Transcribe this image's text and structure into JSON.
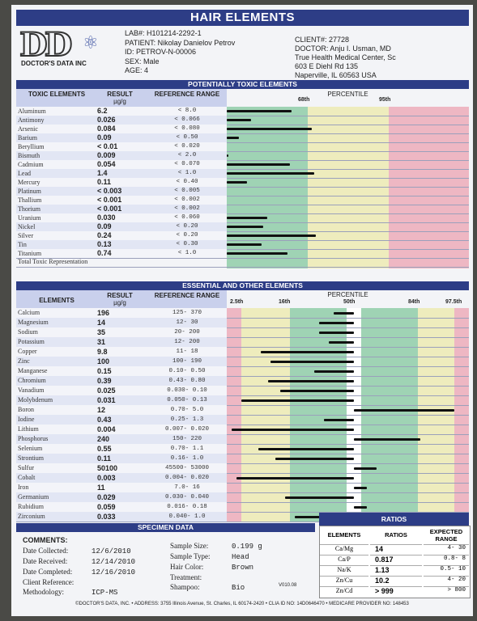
{
  "title": "HAIR ELEMENTS",
  "logo": {
    "mark": "DD",
    "brand": "DOCTOR'S DATA INC"
  },
  "patient": {
    "lab": "LAB#: H101214-2292-1",
    "name": "PATIENT: Nikolay Danielov Petrov",
    "id": "ID:      PETROV-N-00006",
    "sex": "SEX: Male",
    "age": "AGE: 4"
  },
  "client": {
    "client": "CLIENT#: 27728",
    "doctor": "DOCTOR: Anju I. Usman, MD",
    "center": "True Health Medical Center, Sc",
    "address": "603 E Diehl Rd 135",
    "city": "Naperville, IL 60563 USA"
  },
  "toxic": {
    "section_title": "POTENTIALLY TOXIC ELEMENTS",
    "headers": {
      "element": "TOXIC ELEMENTS",
      "result": "RESULT",
      "unit": "µg/g",
      "range": "REFERENCE RANGE",
      "percentile": "PERCENTILE",
      "p68": "68th",
      "p95": "95th"
    },
    "rows": [
      {
        "el": "Aluminum",
        "res": "6.2",
        "ref": "<   8.0",
        "bar": 0.8
      },
      {
        "el": "Antimony",
        "res": "0.026",
        "ref": "< 0.066",
        "bar": 0.3
      },
      {
        "el": "Arsenic",
        "res": "0.084",
        "ref": "< 0.080",
        "bar": 1.05
      },
      {
        "el": "Barium",
        "res": "0.09",
        "ref": "<  0.50",
        "bar": 0.15
      },
      {
        "el": "Beryllium",
        "res": "< 0.01",
        "ref": "< 0.020",
        "bar": 0.0
      },
      {
        "el": "Bismuth",
        "res": "0.009",
        "ref": "<   2.0",
        "bar": 0.02
      },
      {
        "el": "Cadmium",
        "res": "0.054",
        "ref": "< 0.070",
        "bar": 0.78
      },
      {
        "el": "Lead",
        "res": "1.4",
        "ref": "<   1.0",
        "bar": 1.08
      },
      {
        "el": "Mercury",
        "res": "0.11",
        "ref": "<  0.40",
        "bar": 0.25
      },
      {
        "el": "Platinum",
        "res": "< 0.003",
        "ref": "< 0.005",
        "bar": 0.0
      },
      {
        "el": "Thallium",
        "res": "< 0.001",
        "ref": "< 0.002",
        "bar": 0.0
      },
      {
        "el": "Thorium",
        "res": "< 0.001",
        "ref": "< 0.002",
        "bar": 0.0
      },
      {
        "el": "Uranium",
        "res": "0.030",
        "ref": "< 0.060",
        "bar": 0.5
      },
      {
        "el": "Nickel",
        "res": "0.09",
        "ref": "<  0.20",
        "bar": 0.45
      },
      {
        "el": "Silver",
        "res": "0.24",
        "ref": "<  0.20",
        "bar": 1.1
      },
      {
        "el": "Tin",
        "res": "0.13",
        "ref": "<  0.30",
        "bar": 0.43
      },
      {
        "el": "Titanium",
        "res": "0.74",
        "ref": "<   1.0",
        "bar": 0.75
      }
    ],
    "total": "Total Toxic Representation"
  },
  "essential": {
    "section_title": "ESSENTIAL AND OTHER ELEMENTS",
    "headers": {
      "element": "ELEMENTS",
      "result": "RESULT",
      "unit": "µg/g",
      "range": "REFERENCE RANGE",
      "percentile": "PERCENTILE",
      "p2": "2.5th",
      "p16": "16th",
      "p50": "50th",
      "p84": "84th",
      "p97": "97.5th"
    },
    "rows": [
      {
        "el": "Calcium",
        "res": "196",
        "ref": "125-  370",
        "bar": 0.44
      },
      {
        "el": "Magnesium",
        "res": "14",
        "ref": "12-   30",
        "bar": 0.38
      },
      {
        "el": "Sodium",
        "res": "35",
        "ref": "20-  200",
        "bar": 0.38
      },
      {
        "el": "Potassium",
        "res": "31",
        "ref": "12-  200",
        "bar": 0.42
      },
      {
        "el": "Copper",
        "res": "9.8",
        "ref": "11-   18",
        "bar": 0.14
      },
      {
        "el": "Zinc",
        "res": "100",
        "ref": "100-  190",
        "bar": 0.18
      },
      {
        "el": "Manganese",
        "res": "0.15",
        "ref": "0.10- 0.50",
        "bar": 0.36
      },
      {
        "el": "Chromium",
        "res": "0.39",
        "ref": "0.43- 0.80",
        "bar": 0.17
      },
      {
        "el": "Vanadium",
        "res": "0.025",
        "ref": "0.030- 0.10",
        "bar": 0.22
      },
      {
        "el": "Molybdenum",
        "res": "0.031",
        "ref": "0.050- 0.13",
        "bar": 0.06
      },
      {
        "el": "Boron",
        "res": "12",
        "ref": "0.70-  5.0",
        "bar": 0.94
      },
      {
        "el": "Iodine",
        "res": "0.43",
        "ref": "0.25-  1.3",
        "bar": 0.4
      },
      {
        "el": "Lithium",
        "res": "0.004",
        "ref": "0.007- 0.020",
        "bar": 0.02
      },
      {
        "el": "Phosphorus",
        "res": "240",
        "ref": "150-  220",
        "bar": 0.8
      },
      {
        "el": "Selenium",
        "res": "0.55",
        "ref": "0.70-  1.1",
        "bar": 0.13
      },
      {
        "el": "Strontium",
        "res": "0.11",
        "ref": "0.16-  1.0",
        "bar": 0.2
      },
      {
        "el": "Sulfur",
        "res": "50100",
        "ref": "45500- 53000",
        "bar": 0.62
      },
      {
        "el": "Cobalt",
        "res": "0.003",
        "ref": "0.004- 0.020",
        "bar": 0.04
      },
      {
        "el": "Iron",
        "res": "11",
        "ref": "7.0-   16",
        "bar": 0.58
      },
      {
        "el": "Germanium",
        "res": "0.029",
        "ref": "0.030- 0.040",
        "bar": 0.24
      },
      {
        "el": "Rubidium",
        "res": "0.059",
        "ref": "0.016- 0.18",
        "bar": 0.58
      },
      {
        "el": "Zirconium",
        "res": "0.033",
        "ref": "0.040-  1.0",
        "bar": 0.28
      }
    ]
  },
  "specimen": {
    "title": "SPECIMEN DATA",
    "comments": "COMMENTS:",
    "date_collected_label": "Date Collected:",
    "date_collected": "12/6/2010",
    "date_received_label": "Date Received:",
    "date_received": "12/14/2010",
    "date_completed_label": "Date Completed:",
    "date_completed": "12/16/2010",
    "client_ref_label": "Client Reference:",
    "method_label": "Methodology:",
    "method": "ICP-MS",
    "size_label": "Sample Size:",
    "size": "0.199 g",
    "type_label": "Sample Type:",
    "type": "Head",
    "color_label": "Hair Color:",
    "color": "Brown",
    "treatment_label": "Treatment:",
    "shampoo_label": "Shampoo:",
    "shampoo": "Bio",
    "version": "V010.08"
  },
  "ratios": {
    "title": "RATIOS",
    "h_el": "ELEMENTS",
    "h_ratio": "RATIOS",
    "h_range": "EXPECTED RANGE",
    "rows": [
      {
        "el": "Ca/Mg",
        "val": "14",
        "rng": "4-  30"
      },
      {
        "el": "Ca/P",
        "val": "0.817",
        "rng": "0.8-  8"
      },
      {
        "el": "Na/K",
        "val": "1.13",
        "rng": "0.5- 10"
      },
      {
        "el": "Zn/Cu",
        "val": "10.2",
        "rng": "4-  20"
      },
      {
        "el": "Zn/Cd",
        "val": "> 999",
        "rng": "> 800"
      }
    ]
  },
  "footer": "©DOCTOR'S DATA, INC. • ADDRESS: 3755 Illinois Avenue, St. Charles, IL 60174-2420 • CLIA ID NO: 14D0646470 • MEDICARE PROVIDER NO: 148453",
  "colors": {
    "navy": "#2d3d86",
    "green": "#9fd3b4",
    "yellow": "#eeecbd",
    "pink": "#eeb7c3",
    "header": "#c9d0ec"
  }
}
